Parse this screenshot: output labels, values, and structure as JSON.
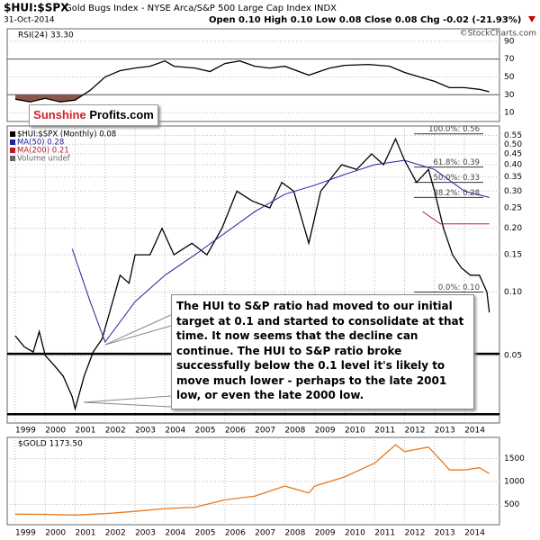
{
  "symbol": "$HUI:$SPX",
  "subtitle": "Gold Bugs Index - NYSE Arca/S&P 500 Large Cap Index INDX",
  "date": "31-Oct-2014",
  "quote": "Open 0.10 High 0.10 Low 0.08 Close 0.08 Chg -0.02 (-21.93%)",
  "watermark": "©StockCharts.com",
  "logo": {
    "first": "Sunshine",
    "second": "Profits.com"
  },
  "chart_data": [
    {
      "type": "line",
      "title": "RSI(24) 33.30",
      "xlim": [
        1998.73,
        2015.17
      ],
      "ylim": [
        0,
        104
      ],
      "yticks": [
        10,
        30,
        50,
        70,
        90
      ],
      "grid": true,
      "bands": [
        30,
        70
      ],
      "fill_color": "#8b5547",
      "series": [
        {
          "name": "RSI(24)",
          "color": "#000000",
          "x": [
            1999.0,
            1999.5,
            2000.0,
            2000.5,
            2001.0,
            2001.5,
            2002.0,
            2002.5,
            2003.0,
            2003.5,
            2004.0,
            2004.3,
            2005.0,
            2005.5,
            2006.0,
            2006.5,
            2007.0,
            2007.5,
            2008.0,
            2008.8,
            2009.5,
            2010.0,
            2010.8,
            2011.5,
            2012.0,
            2012.5,
            2013.0,
            2013.5,
            2014.0,
            2014.5,
            2014.83
          ],
          "values": [
            25,
            22,
            26,
            22,
            24,
            35,
            50,
            57,
            60,
            62,
            68,
            62,
            60,
            56,
            65,
            68,
            62,
            60,
            62,
            52,
            60,
            63,
            64,
            62,
            55,
            50,
            45,
            38,
            38,
            36,
            33.3
          ]
        }
      ]
    },
    {
      "type": "line",
      "log_scale": true,
      "grid": true,
      "xlim": [
        1998.73,
        2015.17
      ],
      "ylim": [
        0.024,
        0.61
      ],
      "xticks": [
        1999,
        2000,
        2001,
        2002,
        2003,
        2004,
        2005,
        2006,
        2007,
        2008,
        2009,
        2010,
        2011,
        2012,
        2013,
        2014
      ],
      "yticks": [
        0.55,
        {
          "value": 0.5,
          "label": "0.50"
        },
        0.45,
        {
          "value": 0.4,
          "label": "0.40"
        },
        0.35,
        {
          "value": 0.3,
          "label": "0.30"
        },
        0.25,
        {
          "value": 0.2,
          "label": "0.20"
        },
        0.15,
        {
          "value": 0.1,
          "label": "0.10"
        },
        0.05
      ],
      "legend": [
        "$HUI:$SPX (Monthly) 0.08",
        "MA(50) 0.28",
        "MA(200) 0.21",
        "Volume undef"
      ],
      "series": [
        {
          "name": "$HUI:$SPX (Monthly)",
          "color": "#000000",
          "x": [
            1999.0,
            1999.3,
            1999.6,
            1999.8,
            2000.0,
            2000.3,
            2000.6,
            2000.9,
            2001.0,
            2001.3,
            2001.6,
            2001.9,
            2002.2,
            2002.5,
            2002.8,
            2003.0,
            2003.5,
            2003.9,
            2004.3,
            2004.9,
            2005.4,
            2005.9,
            2006.4,
            2006.9,
            2007.5,
            2007.9,
            2008.3,
            2008.8,
            2009.2,
            2009.9,
            2010.4,
            2010.9,
            2011.3,
            2011.7,
            2012.0,
            2012.4,
            2012.8,
            2013.0,
            2013.3,
            2013.6,
            2013.9,
            2014.2,
            2014.5,
            2014.75,
            2014.83
          ],
          "values": [
            0.062,
            0.055,
            0.052,
            0.065,
            0.05,
            0.045,
            0.04,
            0.032,
            0.028,
            0.04,
            0.052,
            0.06,
            0.085,
            0.12,
            0.11,
            0.15,
            0.15,
            0.2,
            0.15,
            0.17,
            0.15,
            0.2,
            0.3,
            0.27,
            0.25,
            0.33,
            0.3,
            0.17,
            0.3,
            0.4,
            0.38,
            0.45,
            0.4,
            0.53,
            0.42,
            0.33,
            0.38,
            0.3,
            0.2,
            0.15,
            0.13,
            0.12,
            0.12,
            0.1,
            0.08
          ]
        },
        {
          "name": "MA(50)",
          "color": "#22229a",
          "x": [
            2000.9,
            2001.5,
            2002.0,
            2003.0,
            2004.0,
            2005.0,
            2006.0,
            2007.0,
            2008.0,
            2009.0,
            2010.0,
            2011.0,
            2012.0,
            2013.0,
            2014.0,
            2014.83
          ],
          "values": [
            0.16,
            0.09,
            0.058,
            0.09,
            0.12,
            0.15,
            0.19,
            0.24,
            0.29,
            0.32,
            0.36,
            0.4,
            0.42,
            0.38,
            0.3,
            0.28
          ]
        },
        {
          "name": "MA(200)",
          "color": "#b0202a",
          "x": [
            2012.6,
            2013.2,
            2014.83
          ],
          "values": [
            0.24,
            0.21,
            0.21
          ]
        }
      ],
      "hlines": [
        0.051,
        0.0264
      ],
      "fib_levels": [
        {
          "label": "100.0%: 0.56",
          "value": 0.56
        },
        {
          "label": "61.8%: 0.39",
          "value": 0.39
        },
        {
          "label": "50.0%: 0.33",
          "value": 0.33
        },
        {
          "label": "38.2%: 0.28",
          "value": 0.28
        },
        {
          "label": "0.0%: 0.10",
          "value": 0.1
        }
      ],
      "annotation": "The HUI to S&P ratio had moved to our initial target at 0.1 and started to consolidate at that time. It now seems that the decline can continue. The HUI to S&P ratio broke successfully below the 0.1 level it's likely to move much lower - perhaps to the late 2001 low, or even the late 2000 low."
    },
    {
      "type": "line",
      "title": "$GOLD 1173.50",
      "grid": true,
      "xlim": [
        1998.73,
        2015.17
      ],
      "ylim": [
        60,
        1960
      ],
      "xticks": [
        1999,
        2000,
        2001,
        2002,
        2003,
        2004,
        2005,
        2006,
        2007,
        2008,
        2009,
        2010,
        2011,
        2012,
        2013,
        2014
      ],
      "yticks": [
        500,
        1000,
        1500
      ],
      "series": [
        {
          "name": "$GOLD",
          "color": "#e8791e",
          "x": [
            1999.0,
            2000.0,
            2001.0,
            2002.0,
            2003.0,
            2004.0,
            2005.0,
            2006.0,
            2007.0,
            2008.0,
            2008.8,
            2009.0,
            2010.0,
            2011.0,
            2011.7,
            2012.0,
            2012.8,
            2013.3,
            2013.5,
            2014.0,
            2014.5,
            2014.83
          ],
          "values": [
            290,
            285,
            270,
            300,
            350,
            410,
            440,
            600,
            680,
            900,
            750,
            900,
            1100,
            1400,
            1800,
            1650,
            1750,
            1400,
            1250,
            1250,
            1300,
            1173.5
          ]
        }
      ]
    }
  ]
}
